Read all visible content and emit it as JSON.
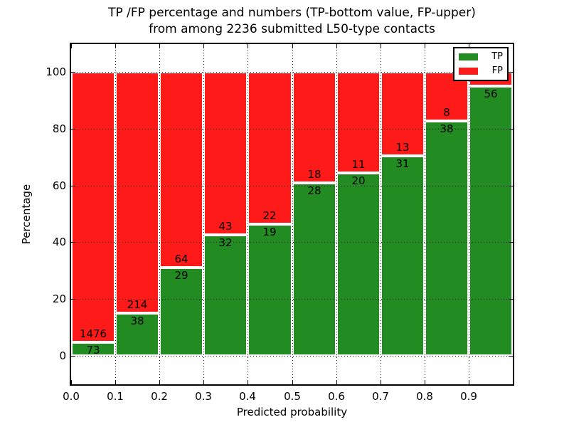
{
  "figure": {
    "title_line1": "TP /FP percentage and numbers (TP-bottom value, FP-upper)",
    "title_line2": "from among 2236 submitted L50-type contacts"
  },
  "colors": {
    "tp": "#228b22",
    "fp": "#ff1a1a",
    "grid": "#000000",
    "frame": "#000000",
    "background": "#ffffff"
  },
  "chart_data": {
    "type": "bar",
    "stacked": true,
    "title": "TP /FP percentage and numbers (TP-bottom value, FP-upper)\nfrom among 2236 submitted L50-type contacts",
    "xlabel": "Predicted probability",
    "ylabel": "Percentage",
    "xlim": [
      0.0,
      1.0
    ],
    "ylim": [
      -10,
      110
    ],
    "x_tick_labels": [
      "0.0",
      "0.1",
      "0.2",
      "0.3",
      "0.4",
      "0.5",
      "0.6",
      "0.7",
      "0.8",
      "0.9"
    ],
    "y_tick_values": [
      0,
      20,
      40,
      60,
      80,
      100
    ],
    "grid": "dotted",
    "bar_edge_color": "#ffffff",
    "total_submitted": 2236,
    "legend": {
      "position": "upper right",
      "entries": [
        {
          "label": "TP",
          "color": "#228b22"
        },
        {
          "label": "FP",
          "color": "#ff1a1a"
        }
      ]
    },
    "bins": [
      {
        "x_start": 0.0,
        "x_end": 0.1,
        "tp_label": "73",
        "fp_label": "1476",
        "tp_pct": 4.7
      },
      {
        "x_start": 0.1,
        "x_end": 0.2,
        "tp_label": "38",
        "fp_label": "214",
        "tp_pct": 15.1
      },
      {
        "x_start": 0.2,
        "x_end": 0.3,
        "tp_label": "29",
        "fp_label": "64",
        "tp_pct": 31.2
      },
      {
        "x_start": 0.3,
        "x_end": 0.4,
        "tp_label": "32",
        "fp_label": "43",
        "tp_pct": 42.7
      },
      {
        "x_start": 0.4,
        "x_end": 0.5,
        "tp_label": "19",
        "fp_label": "22",
        "tp_pct": 46.3
      },
      {
        "x_start": 0.5,
        "x_end": 0.6,
        "tp_label": "28",
        "fp_label": "18",
        "tp_pct": 60.9
      },
      {
        "x_start": 0.6,
        "x_end": 0.7,
        "tp_label": "20",
        "fp_label": "11",
        "tp_pct": 64.5
      },
      {
        "x_start": 0.7,
        "x_end": 0.8,
        "tp_label": "31",
        "fp_label": "13",
        "tp_pct": 70.5
      },
      {
        "x_start": 0.8,
        "x_end": 0.9,
        "tp_label": "38",
        "fp_label": "8",
        "tp_pct": 82.6
      },
      {
        "x_start": 0.9,
        "x_end": 1.0,
        "tp_label": "56",
        "fp_label": "",
        "tp_pct": 94.9
      }
    ]
  }
}
